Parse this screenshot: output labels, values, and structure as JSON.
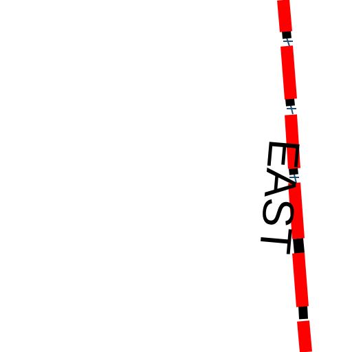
{
  "map": {
    "background_color": "#ffffff",
    "street": {
      "label": "EAST",
      "label_color": "#000000",
      "line_color": "#ff0000",
      "joint_color": "#000000",
      "tick_color": "#1f4e79"
    }
  }
}
